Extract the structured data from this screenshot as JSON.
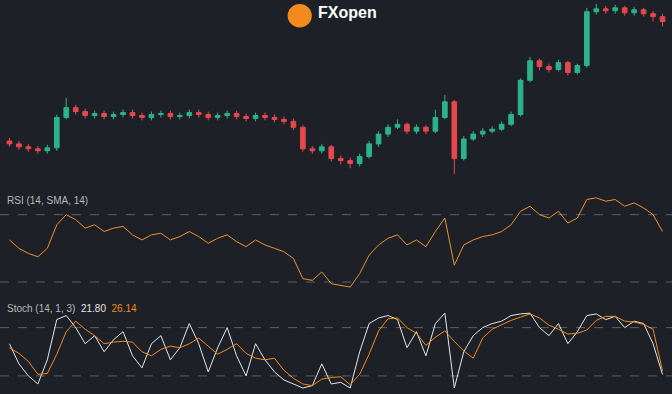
{
  "chart_data": [
    {
      "type": "candlestick",
      "title": "FXopen",
      "tick_labels": false,
      "grid": false,
      "colors": [
        "#2bb38a",
        "#e5484d"
      ],
      "x": [
        1,
        2,
        3,
        4,
        5,
        6,
        7,
        8,
        9,
        10,
        11,
        12,
        13,
        14,
        15,
        16,
        17,
        18,
        19,
        20,
        21,
        22,
        23,
        24,
        25,
        26,
        27,
        28,
        29,
        30,
        31,
        32,
        33,
        34,
        35,
        36,
        37,
        38,
        39,
        40,
        41,
        42,
        43,
        44,
        45,
        46,
        47,
        48,
        49,
        50,
        51,
        52,
        53,
        54,
        55,
        56,
        57,
        58,
        59,
        60,
        61,
        62,
        63,
        64,
        65,
        66,
        67,
        68,
        69,
        70
      ],
      "xlim": [
        0,
        71
      ],
      "ylim": [
        0,
        190
      ],
      "open": [
        48,
        45,
        42,
        40,
        38,
        41,
        72,
        82,
        78,
        74,
        76,
        73,
        75,
        77,
        74,
        72,
        75,
        76,
        73,
        74,
        77,
        75,
        72,
        74,
        76,
        73,
        71,
        74,
        72,
        70,
        68,
        62,
        40,
        38,
        42,
        30,
        28,
        25,
        32,
        45,
        55,
        62,
        65,
        58,
        62,
        58,
        72,
        88,
        30,
        50,
        55,
        58,
        60,
        65,
        75,
        110,
        130,
        124,
        121,
        128,
        118,
        125,
        180,
        183,
        181,
        184,
        179,
        182,
        178,
        175
      ],
      "high": [
        51,
        48,
        45,
        43,
        44,
        75,
        92,
        85,
        81,
        79,
        79,
        78,
        80,
        80,
        77,
        78,
        79,
        79,
        77,
        80,
        80,
        78,
        77,
        79,
        79,
        76,
        77,
        77,
        75,
        73,
        71,
        64,
        43,
        45,
        44,
        33,
        31,
        35,
        48,
        58,
        65,
        70,
        67,
        65,
        64,
        80,
        95,
        90,
        53,
        58,
        61,
        63,
        68,
        78,
        112,
        134,
        132,
        127,
        131,
        130,
        127,
        184,
        188,
        186,
        187,
        186,
        185,
        184,
        181,
        178
      ],
      "low": [
        42,
        39,
        37,
        35,
        35,
        38,
        70,
        75,
        71,
        71,
        70,
        70,
        72,
        71,
        69,
        69,
        72,
        70,
        70,
        71,
        72,
        69,
        69,
        71,
        70,
        68,
        68,
        69,
        67,
        65,
        59,
        37,
        35,
        35,
        27,
        24,
        20,
        22,
        30,
        42,
        52,
        60,
        55,
        55,
        55,
        56,
        70,
        14,
        28,
        48,
        52,
        56,
        58,
        63,
        73,
        108,
        120,
        118,
        119,
        115,
        116,
        123,
        177,
        178,
        178,
        176,
        176,
        175,
        170,
        165
      ],
      "close": [
        45,
        42,
        40,
        38,
        41,
        72,
        82,
        78,
        74,
        76,
        73,
        75,
        77,
        74,
        72,
        75,
        76,
        73,
        74,
        77,
        75,
        72,
        74,
        76,
        73,
        71,
        74,
        72,
        70,
        68,
        62,
        40,
        38,
        42,
        30,
        28,
        25,
        32,
        45,
        55,
        62,
        65,
        58,
        62,
        58,
        72,
        88,
        30,
        50,
        55,
        58,
        60,
        65,
        75,
        110,
        130,
        124,
        121,
        128,
        118,
        125,
        180,
        183,
        181,
        184,
        179,
        182,
        178,
        175,
        170
      ]
    },
    {
      "type": "line",
      "title": "RSI (14, SMA, 14)",
      "tick_labels": false,
      "grid": false,
      "x": [
        1,
        2,
        3,
        4,
        5,
        6,
        7,
        8,
        9,
        10,
        11,
        12,
        13,
        14,
        15,
        16,
        17,
        18,
        19,
        20,
        21,
        22,
        23,
        24,
        25,
        26,
        27,
        28,
        29,
        30,
        31,
        32,
        33,
        34,
        35,
        36,
        37,
        38,
        39,
        40,
        41,
        42,
        43,
        44,
        45,
        46,
        47,
        48,
        49,
        50,
        51,
        52,
        53,
        54,
        55,
        56,
        57,
        58,
        59,
        60,
        61,
        62,
        63,
        64,
        65,
        66,
        67,
        68,
        69,
        70
      ],
      "xlim": [
        0,
        71
      ],
      "ylim": [
        22,
        84
      ],
      "levels": [
        30,
        70
      ],
      "series": [
        {
          "color": "#e8932d",
          "values": [
            55,
            50,
            47,
            45,
            50,
            64,
            70,
            67,
            62,
            64,
            60,
            62,
            63,
            58,
            55,
            58,
            59,
            55,
            57,
            60,
            57,
            53,
            56,
            58,
            54,
            51,
            55,
            52,
            50,
            48,
            44,
            32,
            31,
            36,
            29,
            28,
            27,
            35,
            46,
            52,
            56,
            58,
            52,
            55,
            51,
            60,
            68,
            40,
            52,
            55,
            57,
            58,
            60,
            64,
            72,
            75,
            70,
            68,
            72,
            65,
            68,
            79,
            80,
            78,
            79,
            75,
            77,
            74,
            70,
            60
          ]
        }
      ]
    },
    {
      "type": "line",
      "title": "Stoch (14, 1, 3)",
      "tick_labels": false,
      "grid": false,
      "x": [
        1,
        2,
        3,
        4,
        5,
        6,
        7,
        8,
        9,
        10,
        11,
        12,
        13,
        14,
        15,
        16,
        17,
        18,
        19,
        20,
        21,
        22,
        23,
        24,
        25,
        26,
        27,
        28,
        29,
        30,
        31,
        32,
        33,
        34,
        35,
        36,
        37,
        38,
        39,
        40,
        41,
        42,
        43,
        44,
        45,
        46,
        47,
        48,
        49,
        50,
        51,
        52,
        53,
        54,
        55,
        56,
        57,
        58,
        59,
        60,
        61,
        62,
        63,
        64,
        65,
        66,
        67,
        68,
        69,
        70
      ],
      "xlim": [
        0,
        71
      ],
      "ylim": [
        0,
        115
      ],
      "levels": [
        20,
        80
      ],
      "annotations": [
        "21.80",
        "26.14"
      ],
      "series": [
        {
          "color": "#e6e6e6",
          "values": [
            60,
            35,
            20,
            10,
            40,
            90,
            95,
            80,
            60,
            70,
            50,
            65,
            75,
            45,
            30,
            60,
            70,
            40,
            55,
            85,
            60,
            25,
            55,
            80,
            45,
            20,
            60,
            40,
            25,
            15,
            10,
            5,
            8,
            35,
            10,
            12,
            5,
            50,
            85,
            92,
            95,
            90,
            55,
            75,
            45,
            85,
            98,
            5,
            50,
            70,
            80,
            85,
            88,
            95,
            97,
            98,
            80,
            70,
            85,
            60,
            75,
            95,
            97,
            90,
            94,
            80,
            88,
            85,
            60,
            21.8
          ]
        },
        {
          "color": "#f28a1e",
          "values": [
            55,
            48,
            38,
            22,
            23,
            47,
            75,
            88,
            78,
            70,
            60,
            62,
            63,
            62,
            50,
            45,
            53,
            57,
            55,
            60,
            67,
            57,
            47,
            53,
            60,
            48,
            42,
            40,
            42,
            27,
            17,
            10,
            8,
            16,
            18,
            19,
            9,
            22,
            47,
            76,
            91,
            92,
            80,
            73,
            58,
            68,
            76,
            63,
            51,
            42,
            67,
            78,
            84,
            89,
            93,
            97,
            92,
            83,
            78,
            72,
            73,
            77,
            89,
            94,
            94,
            88,
            87,
            84,
            78,
            26.14
          ]
        }
      ]
    }
  ]
}
